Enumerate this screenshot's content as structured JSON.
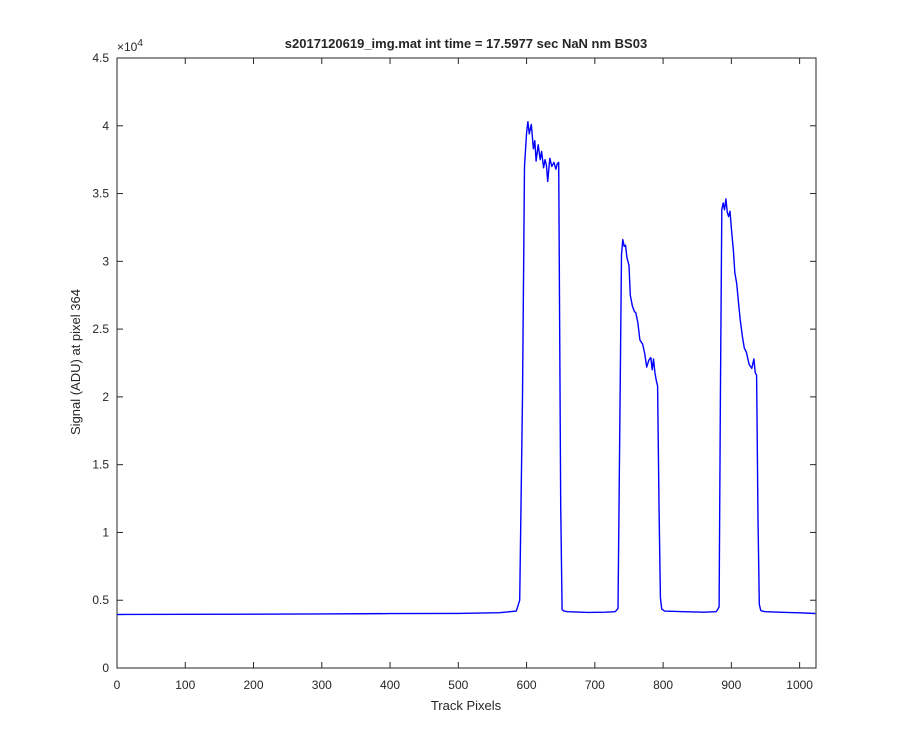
{
  "chart_data": {
    "type": "line",
    "title": "s2017120619_img.mat int time = 17.5977 sec  NaN nm BS03",
    "xlabel": "Track Pixels",
    "ylabel": "Signal (ADU) at pixel 364",
    "y_multiplier": "×10",
    "y_multiplier_exponent": "4",
    "xlim": [
      0,
      1024
    ],
    "ylim": [
      0,
      45000
    ],
    "x_ticks": [
      0,
      100,
      200,
      300,
      400,
      500,
      600,
      700,
      800,
      900,
      1000
    ],
    "x_tick_labels": [
      "0",
      "100",
      "200",
      "300",
      "400",
      "500",
      "600",
      "700",
      "800",
      "900",
      "1000"
    ],
    "y_ticks": [
      0,
      5000,
      10000,
      15000,
      20000,
      25000,
      30000,
      35000,
      40000,
      45000
    ],
    "y_tick_labels": [
      "0",
      "0.5",
      "1",
      "1.5",
      "2",
      "2.5",
      "3",
      "3.5",
      "4",
      "4.5"
    ],
    "grid": false,
    "line_color": "#0000FF",
    "series": [
      {
        "x": [
          0,
          100,
          200,
          300,
          400,
          500,
          560,
          585,
          590,
          594,
          597,
          600,
          602,
          604,
          607,
          610,
          612,
          614,
          617,
          620,
          622,
          625,
          627,
          629,
          631,
          634,
          637,
          640,
          643,
          645,
          647,
          650,
          652,
          655,
          660,
          690,
          715,
          730,
          734,
          737,
          739,
          741,
          743,
          745,
          747,
          750,
          752,
          755,
          758,
          760,
          763,
          766,
          770,
          773,
          776,
          779,
          782,
          784,
          786,
          788,
          790,
          792,
          794,
          796,
          798,
          802,
          830,
          860,
          878,
          882,
          884,
          886,
          888,
          890,
          892,
          894,
          896,
          898,
          900,
          903,
          905,
          908,
          910,
          913,
          916,
          919,
          922,
          926,
          930,
          933,
          935,
          937,
          939,
          941,
          943,
          945,
          950,
          980,
          1000,
          1023
        ],
        "y": [
          3950,
          3960,
          3970,
          3990,
          4010,
          4030,
          4080,
          4200,
          5000,
          20000,
          37000,
          39500,
          40300,
          39400,
          40100,
          38300,
          38900,
          37400,
          38600,
          37500,
          38100,
          36900,
          37500,
          37100,
          35900,
          37600,
          37000,
          37300,
          36800,
          37200,
          37300,
          12000,
          4300,
          4200,
          4150,
          4100,
          4120,
          4150,
          4400,
          20000,
          30500,
          31600,
          31100,
          31200,
          30300,
          29700,
          27500,
          26700,
          26300,
          26200,
          25500,
          24200,
          23900,
          23200,
          22200,
          22700,
          22900,
          22000,
          22800,
          21800,
          21200,
          20800,
          12000,
          5200,
          4350,
          4200,
          4150,
          4120,
          4150,
          4500,
          20000,
          33800,
          34300,
          33800,
          34600,
          33600,
          33300,
          33700,
          32400,
          30800,
          29200,
          28300,
          27200,
          25700,
          24500,
          23600,
          23300,
          22400,
          22100,
          22800,
          21800,
          21600,
          11000,
          4700,
          4250,
          4200,
          4150,
          4100,
          4070,
          4020
        ]
      }
    ]
  }
}
